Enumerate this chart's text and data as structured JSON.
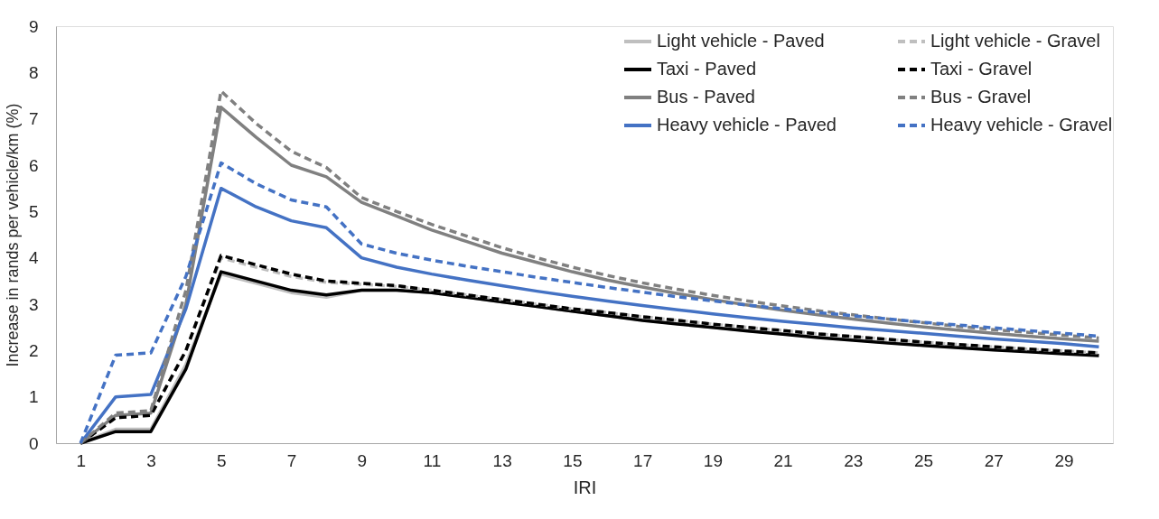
{
  "chart_data": {
    "type": "line",
    "xlabel": "IRI",
    "ylabel": "Increase in rands per vehicle/km  (%)",
    "x": [
      1,
      2,
      3,
      4,
      5,
      6,
      7,
      8,
      9,
      10,
      11,
      12,
      13,
      14,
      15,
      16,
      17,
      18,
      19,
      20,
      21,
      22,
      23,
      24,
      25,
      26,
      27,
      28,
      29,
      30
    ],
    "xlim": [
      0.3,
      30.4
    ],
    "xticks": [
      1,
      3,
      5,
      7,
      9,
      11,
      13,
      15,
      17,
      19,
      21,
      23,
      25,
      27,
      29
    ],
    "ylim": [
      0,
      9
    ],
    "yticks": [
      0,
      1,
      2,
      3,
      4,
      5,
      6,
      7,
      8,
      9
    ],
    "grid": false,
    "legend": "top right",
    "marker": "none",
    "series": [
      {
        "name": "Light vehicle - Paved",
        "color": "#bfbfbf",
        "line_style": "solid",
        "values": [
          0,
          0.3,
          0.3,
          1.7,
          3.65,
          3.45,
          3.25,
          3.15,
          3.3,
          3.3,
          3.25,
          3.15,
          3.05,
          2.95,
          2.85,
          2.75,
          2.66,
          2.58,
          2.5,
          2.43,
          2.36,
          2.29,
          2.23,
          2.17,
          2.12,
          2.07,
          2.02,
          1.98,
          1.94,
          1.9
        ]
      },
      {
        "name": "Taxi - Paved",
        "color": "#000000",
        "line_style": "solid",
        "values": [
          0,
          0.25,
          0.25,
          1.6,
          3.7,
          3.5,
          3.3,
          3.2,
          3.3,
          3.3,
          3.25,
          3.15,
          3.05,
          2.95,
          2.85,
          2.75,
          2.65,
          2.57,
          2.5,
          2.42,
          2.35,
          2.28,
          2.22,
          2.16,
          2.11,
          2.06,
          2.01,
          1.97,
          1.93,
          1.89
        ]
      },
      {
        "name": "Bus - Paved",
        "color": "#808080",
        "line_style": "solid",
        "values": [
          0,
          0.6,
          0.65,
          3.0,
          7.25,
          6.6,
          6.0,
          5.75,
          5.2,
          4.9,
          4.6,
          4.35,
          4.1,
          3.9,
          3.7,
          3.52,
          3.37,
          3.23,
          3.1,
          2.98,
          2.87,
          2.77,
          2.68,
          2.59,
          2.51,
          2.44,
          2.37,
          2.31,
          2.25,
          2.2
        ]
      },
      {
        "name": "Heavy vehicle - Paved",
        "color": "#4472c4",
        "line_style": "solid",
        "values": [
          0,
          1.0,
          1.05,
          2.9,
          5.5,
          5.1,
          4.8,
          4.65,
          4.0,
          3.8,
          3.65,
          3.52,
          3.4,
          3.28,
          3.17,
          3.07,
          2.97,
          2.88,
          2.79,
          2.71,
          2.63,
          2.56,
          2.49,
          2.43,
          2.37,
          2.31,
          2.25,
          2.2,
          2.15,
          2.08
        ]
      },
      {
        "name": "Light vehicle - Gravel",
        "color": "#bfbfbf",
        "line_style": "dashed",
        "values": [
          0,
          0.55,
          0.6,
          2.0,
          4.0,
          3.8,
          3.6,
          3.47,
          3.43,
          3.38,
          3.3,
          3.2,
          3.1,
          3.0,
          2.9,
          2.82,
          2.73,
          2.65,
          2.57,
          2.5,
          2.43,
          2.36,
          2.3,
          2.24,
          2.18,
          2.13,
          2.08,
          2.03,
          1.99,
          1.95
        ]
      },
      {
        "name": "Taxi - Gravel",
        "color": "#000000",
        "line_style": "dashed",
        "values": [
          0,
          0.55,
          0.6,
          2.0,
          4.05,
          3.85,
          3.65,
          3.5,
          3.45,
          3.4,
          3.3,
          3.2,
          3.1,
          3.0,
          2.9,
          2.82,
          2.73,
          2.65,
          2.57,
          2.5,
          2.43,
          2.36,
          2.3,
          2.24,
          2.18,
          2.13,
          2.08,
          2.03,
          1.99,
          1.95
        ]
      },
      {
        "name": "Bus - Gravel",
        "color": "#808080",
        "line_style": "dashed",
        "values": [
          0,
          0.65,
          0.7,
          3.3,
          7.6,
          6.9,
          6.3,
          5.95,
          5.3,
          5.0,
          4.72,
          4.47,
          4.22,
          4.0,
          3.8,
          3.62,
          3.46,
          3.32,
          3.19,
          3.07,
          2.96,
          2.86,
          2.77,
          2.68,
          2.6,
          2.52,
          2.45,
          2.39,
          2.33,
          2.27
        ]
      },
      {
        "name": "Heavy vehicle - Gravel",
        "color": "#4472c4",
        "line_style": "dashed",
        "values": [
          0,
          1.9,
          1.95,
          3.6,
          6.05,
          5.6,
          5.25,
          5.1,
          4.3,
          4.1,
          3.95,
          3.82,
          3.7,
          3.58,
          3.47,
          3.36,
          3.26,
          3.16,
          3.07,
          2.98,
          2.9,
          2.82,
          2.75,
          2.68,
          2.61,
          2.55,
          2.49,
          2.43,
          2.37,
          2.31
        ]
      }
    ]
  }
}
